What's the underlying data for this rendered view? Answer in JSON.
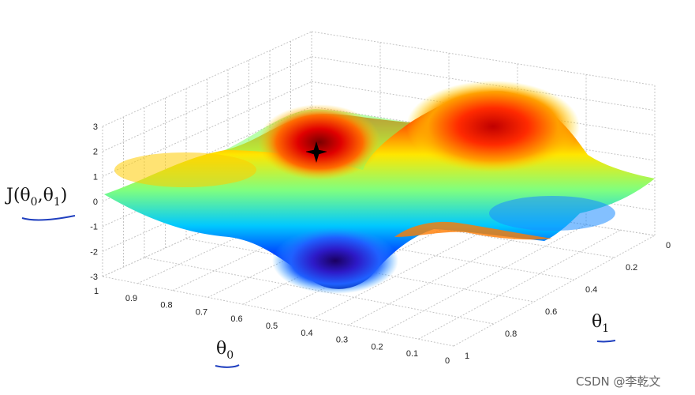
{
  "chart_data": {
    "type": "surface",
    "z_label": "J(θ0,θ1)",
    "x_label": "θ0",
    "y_label": "θ1",
    "z_ticks": [
      "3",
      "2",
      "1",
      "0",
      "-1",
      "-2",
      "-3"
    ],
    "x_ticks": [
      "1",
      "0.9",
      "0.8",
      "0.7",
      "0.6",
      "0.5",
      "0.4",
      "0.3",
      "0.2",
      "0.1",
      "0"
    ],
    "y_ticks": [
      "0",
      "0.2",
      "0.4",
      "0.6",
      "0.8",
      "1"
    ],
    "zlim": [
      -3,
      3
    ],
    "xlim": [
      0,
      1
    ],
    "ylim": [
      0,
      1
    ],
    "grid": true,
    "colormap": "jet",
    "marker": {
      "symbol": "star",
      "color": "#000000"
    }
  },
  "labels": {
    "z": {
      "main": "J(θ",
      "s1": "0",
      "mid": ",θ",
      "s2": "1",
      "end": ")"
    },
    "x": {
      "main": "θ",
      "sub": "0"
    },
    "y": {
      "main": "θ",
      "sub": "1"
    }
  },
  "watermark": "CSDN @李乾文",
  "colors": {
    "annotation": "#1f3fbf",
    "grid": "#bfbfbf"
  }
}
